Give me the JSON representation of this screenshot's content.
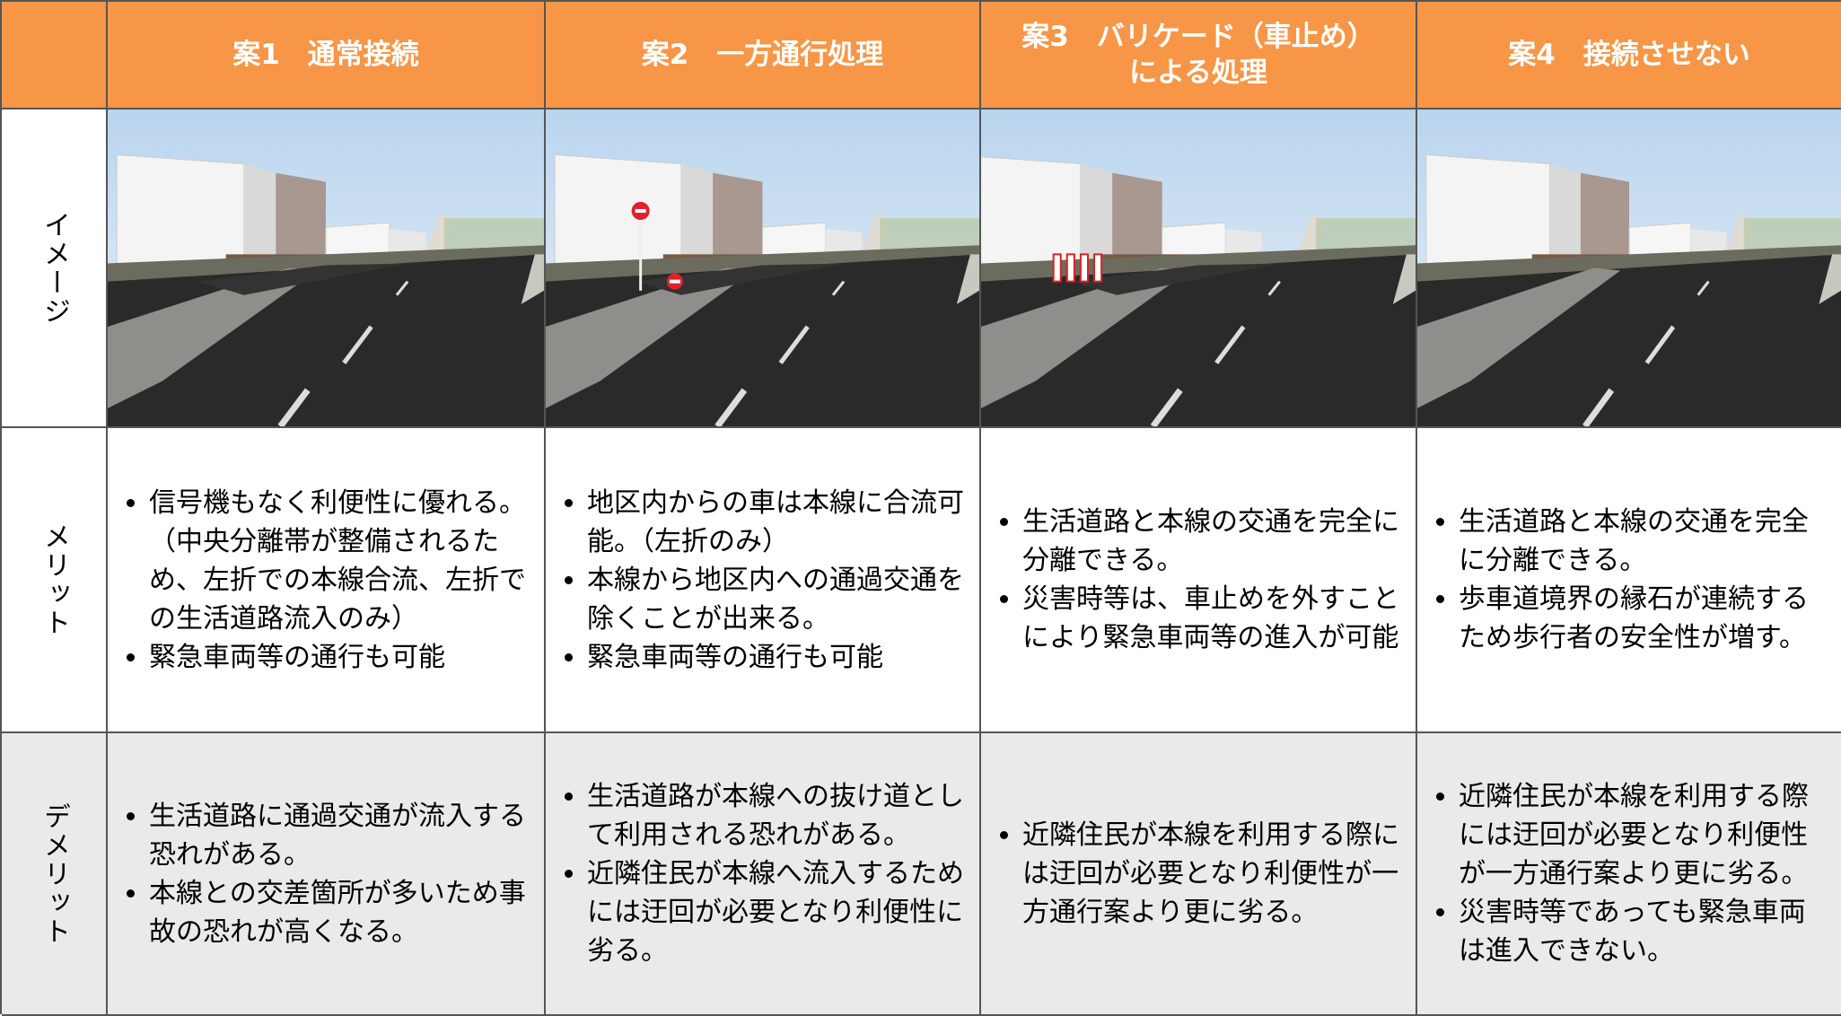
{
  "header": {
    "corner": "",
    "columns": [
      [
        "案1　通常接続"
      ],
      [
        "案2　一方通行処理"
      ],
      [
        "案3　バリケード（車止め）",
        "による処理"
      ],
      [
        "案4　接続させない"
      ]
    ]
  },
  "rows": {
    "image": {
      "label": "イメージ"
    },
    "merit": {
      "label": "メリット",
      "cells": [
        [
          "信号機もなく利便性に優れる。（中央分離帯が整備されるため、左折での本線合流、左折での生活道路流入のみ）",
          "緊急車両等の通行も可能"
        ],
        [
          "地区内からの車は本線に合流可能。（左折のみ）",
          "本線から地区内への通過交通を除くことが出来る。",
          "緊急車両等の通行も可能"
        ],
        [
          "生活道路と本線の交通を完全に分離できる。",
          "災害時等は、車止めを外すことにより緊急車両等の進入が可能"
        ],
        [
          "生活道路と本線の交通を完全に分離できる。",
          "歩車道境界の縁石が連続するため歩行者の安全性が増す。"
        ]
      ]
    },
    "demerit": {
      "label": "デメリット",
      "cells": [
        [
          "生活道路に通過交通が流入する恐れがある。",
          "本線との交差箇所が多いため事故の恐れが高くなる。"
        ],
        [
          "生活道路が本線への抜け道として利用される恐れがある。",
          "近隣住民が本線へ流入するためには迂回が必要となり利便性に劣る。"
        ],
        [
          "近隣住民が本線を利用する際には迂回が必要となり利便性が一方通行案より更に劣る。"
        ],
        [
          "近隣住民が本線を利用する際には迂回が必要となり利便性が一方通行案より更に劣る。",
          "災害時等であっても緊急車両は進入できない。"
        ]
      ]
    }
  }
}
